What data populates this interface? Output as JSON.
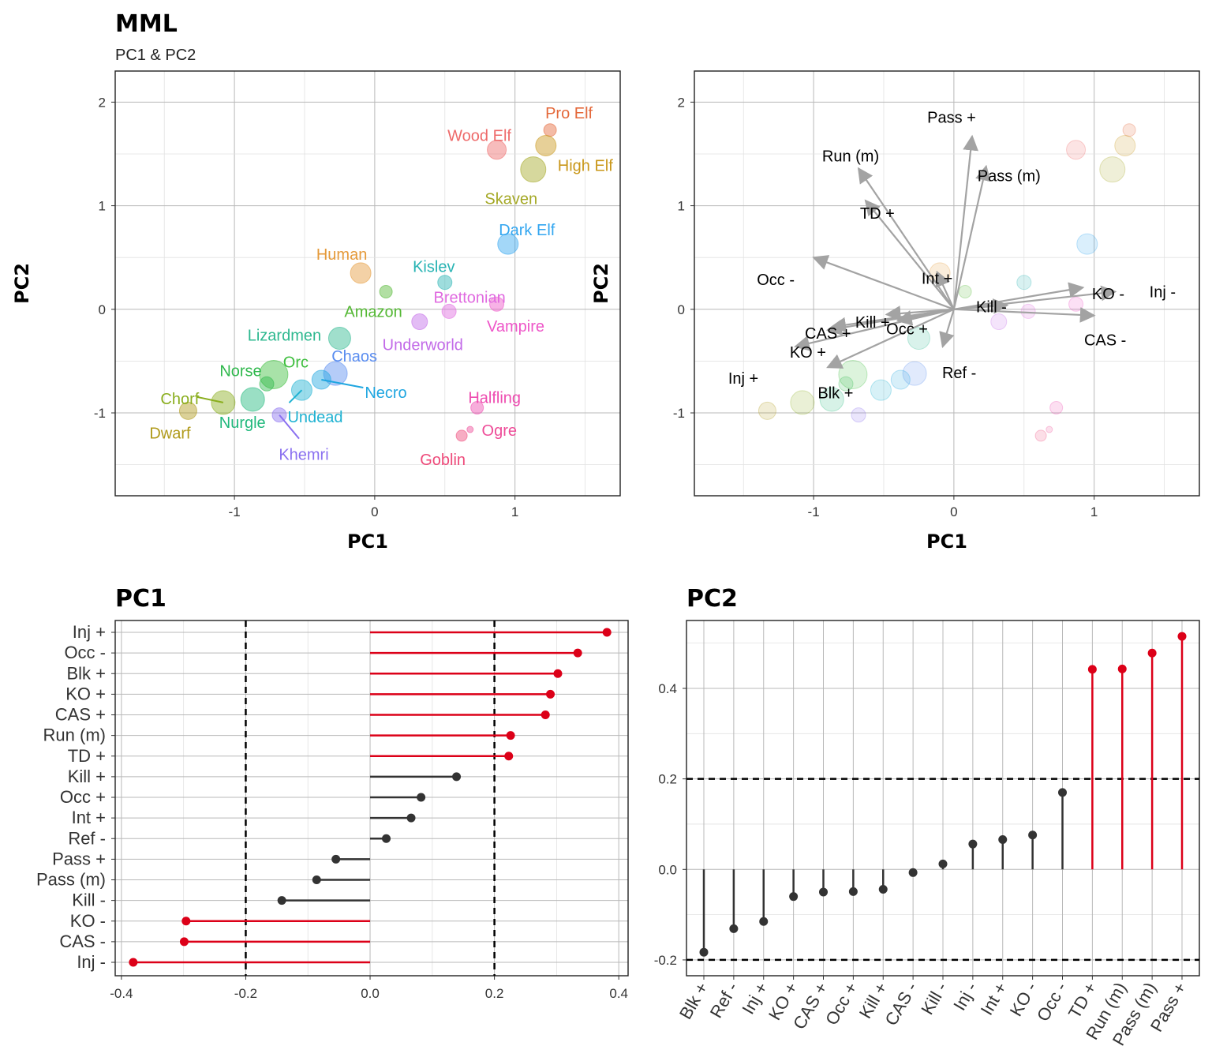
{
  "figure": {
    "title": "MML",
    "subtitle": "PC1 & PC2"
  },
  "chart_data": [
    {
      "type": "scatter",
      "title": "",
      "xlabel": "PC1",
      "ylabel": "PC2",
      "xlim": [
        -1.85,
        1.75
      ],
      "ylim": [
        -1.8,
        2.3
      ],
      "xticks": [
        -1,
        0,
        1
      ],
      "yticks": [
        -1,
        0,
        1,
        2
      ],
      "points": [
        {
          "name": "Pro Elf",
          "x": 1.25,
          "y": 1.73,
          "size": 8,
          "color": "#E4683A"
        },
        {
          "name": "Wood Elf",
          "x": 0.87,
          "y": 1.54,
          "size": 12,
          "color": "#EE6A6A"
        },
        {
          "name": "High Elf",
          "x": 1.22,
          "y": 1.58,
          "size": 13,
          "color": "#C9971A"
        },
        {
          "name": "Skaven",
          "x": 1.13,
          "y": 1.35,
          "size": 16,
          "color": "#A4A825"
        },
        {
          "name": "Dark Elf",
          "x": 0.95,
          "y": 0.63,
          "size": 13,
          "color": "#33A6F0"
        },
        {
          "name": "Human",
          "x": -0.1,
          "y": 0.35,
          "size": 13,
          "color": "#E59A3A"
        },
        {
          "name": "Kislev",
          "x": 0.5,
          "y": 0.26,
          "size": 9,
          "color": "#27B3B3"
        },
        {
          "name": "Amazon",
          "x": 0.08,
          "y": 0.17,
          "size": 8,
          "color": "#54B834"
        },
        {
          "name": "Brettonian",
          "x": 0.53,
          "y": -0.02,
          "size": 9,
          "color": "#E06AE0"
        },
        {
          "name": "Vampire",
          "x": 0.87,
          "y": 0.05,
          "size": 9,
          "color": "#EE55C8"
        },
        {
          "name": "Underworld",
          "x": 0.32,
          "y": -0.12,
          "size": 10,
          "color": "#C26AE8"
        },
        {
          "name": "Lizardmen",
          "x": -0.25,
          "y": -0.28,
          "size": 14,
          "color": "#2DB88F"
        },
        {
          "name": "Orc",
          "x": -0.72,
          "y": -0.63,
          "size": 18,
          "color": "#3DBE3D"
        },
        {
          "name": "Norse",
          "x": -0.77,
          "y": -0.72,
          "size": 9,
          "color": "#2FB84C"
        },
        {
          "name": "Chaos",
          "x": -0.28,
          "y": -0.62,
          "size": 15,
          "color": "#5A8DF0"
        },
        {
          "name": "Necro",
          "x": -0.38,
          "y": -0.68,
          "size": 12,
          "color": "#1FA6E0"
        },
        {
          "name": "Undead",
          "x": -0.52,
          "y": -0.78,
          "size": 13,
          "color": "#1FB2D2"
        },
        {
          "name": "Nurgle",
          "x": -0.87,
          "y": -0.87,
          "size": 15,
          "color": "#20B87C"
        },
        {
          "name": "Chorf",
          "x": -1.08,
          "y": -0.9,
          "size": 15,
          "color": "#8AAE1E"
        },
        {
          "name": "Dwarf",
          "x": -1.33,
          "y": -0.98,
          "size": 11,
          "color": "#B09A1A"
        },
        {
          "name": "Khemri",
          "x": -0.68,
          "y": -1.02,
          "size": 9,
          "color": "#8A70F0"
        },
        {
          "name": "Halfling",
          "x": 0.73,
          "y": -0.95,
          "size": 8,
          "color": "#EE4CB0"
        },
        {
          "name": "Ogre",
          "x": 0.68,
          "y": -1.16,
          "size": 4,
          "color": "#EE4C98"
        },
        {
          "name": "Goblin",
          "x": 0.62,
          "y": -1.22,
          "size": 7,
          "color": "#EE4A7A"
        }
      ]
    },
    {
      "type": "scatter",
      "title": "",
      "xlabel": "PC1",
      "ylabel": "PC2",
      "xlim": [
        -1.85,
        1.75
      ],
      "ylim": [
        -1.8,
        2.3
      ],
      "xticks": [
        -1,
        0,
        1
      ],
      "yticks": [
        -1,
        0,
        1,
        2
      ],
      "arrows": [
        {
          "name": "Run (m)",
          "x": -0.68,
          "y": 1.36
        },
        {
          "name": "TD +",
          "x": -0.63,
          "y": 1.05
        },
        {
          "name": "Pass +",
          "x": 0.13,
          "y": 1.67
        },
        {
          "name": "Pass (m)",
          "x": 0.23,
          "y": 1.38
        },
        {
          "name": "Occ -",
          "x": -1.0,
          "y": 0.5
        },
        {
          "name": "Int +",
          "x": -0.12,
          "y": 0.36
        },
        {
          "name": "Kill -",
          "x": 0.38,
          "y": 0.04
        },
        {
          "name": "KO -",
          "x": 0.92,
          "y": 0.21
        },
        {
          "name": "Inj -",
          "x": 1.15,
          "y": 0.17
        },
        {
          "name": "CAS +",
          "x": -0.87,
          "y": -0.17
        },
        {
          "name": "Kill +",
          "x": -0.4,
          "y": -0.11
        },
        {
          "name": "Occ +",
          "x": -0.48,
          "y": -0.05
        },
        {
          "name": "CAS -",
          "x": 1.0,
          "y": -0.06
        },
        {
          "name": "KO +",
          "x": -0.9,
          "y": -0.2
        },
        {
          "name": "Inj +",
          "x": -1.13,
          "y": -0.36
        },
        {
          "name": "Ref -",
          "x": -0.08,
          "y": -0.36
        },
        {
          "name": "Blk +",
          "x": -0.9,
          "y": -0.56
        }
      ],
      "points_ref": "same team positions as first panel"
    },
    {
      "type": "lollipop",
      "title": "PC1",
      "xlabel": "",
      "ylabel": "",
      "xlim": [
        -0.41,
        0.415
      ],
      "xticks": [
        -0.4,
        -0.2,
        0.0,
        0.2,
        0.4
      ],
      "threshold": 0.2,
      "categories": [
        "Inj +",
        "Occ -",
        "Blk +",
        "KO +",
        "CAS +",
        "Run (m)",
        "TD +",
        "Kill +",
        "Occ +",
        "Int +",
        "Ref -",
        "Pass +",
        "Pass (m)",
        "Kill -",
        "KO -",
        "CAS -",
        "Inj -"
      ],
      "values": [
        0.381,
        0.334,
        0.302,
        0.29,
        0.282,
        0.226,
        0.223,
        0.139,
        0.082,
        0.066,
        0.026,
        -0.055,
        -0.086,
        -0.142,
        -0.296,
        -0.299,
        -0.381
      ],
      "highlight_color": "#DC0018",
      "normal_color": "#333333"
    },
    {
      "type": "lollipop",
      "title": "PC2",
      "xlabel": "",
      "ylabel": "",
      "ylim": [
        -0.235,
        0.55
      ],
      "yticks": [
        -0.2,
        0.0,
        0.2,
        0.4
      ],
      "threshold": 0.2,
      "categories": [
        "Blk +",
        "Ref -",
        "Inj +",
        "KO +",
        "CAS +",
        "Occ +",
        "Kill +",
        "CAS -",
        "Kill -",
        "Inj -",
        "Int +",
        "KO -",
        "Occ -",
        "TD +",
        "Run (m)",
        "Pass (m)",
        "Pass +"
      ],
      "values": [
        -0.183,
        -0.131,
        -0.115,
        -0.06,
        -0.05,
        -0.049,
        -0.044,
        -0.007,
        0.012,
        0.056,
        0.066,
        0.076,
        0.17,
        0.442,
        0.443,
        0.478,
        0.515
      ],
      "highlight_color": "#DC0018",
      "normal_color": "#333333"
    }
  ]
}
